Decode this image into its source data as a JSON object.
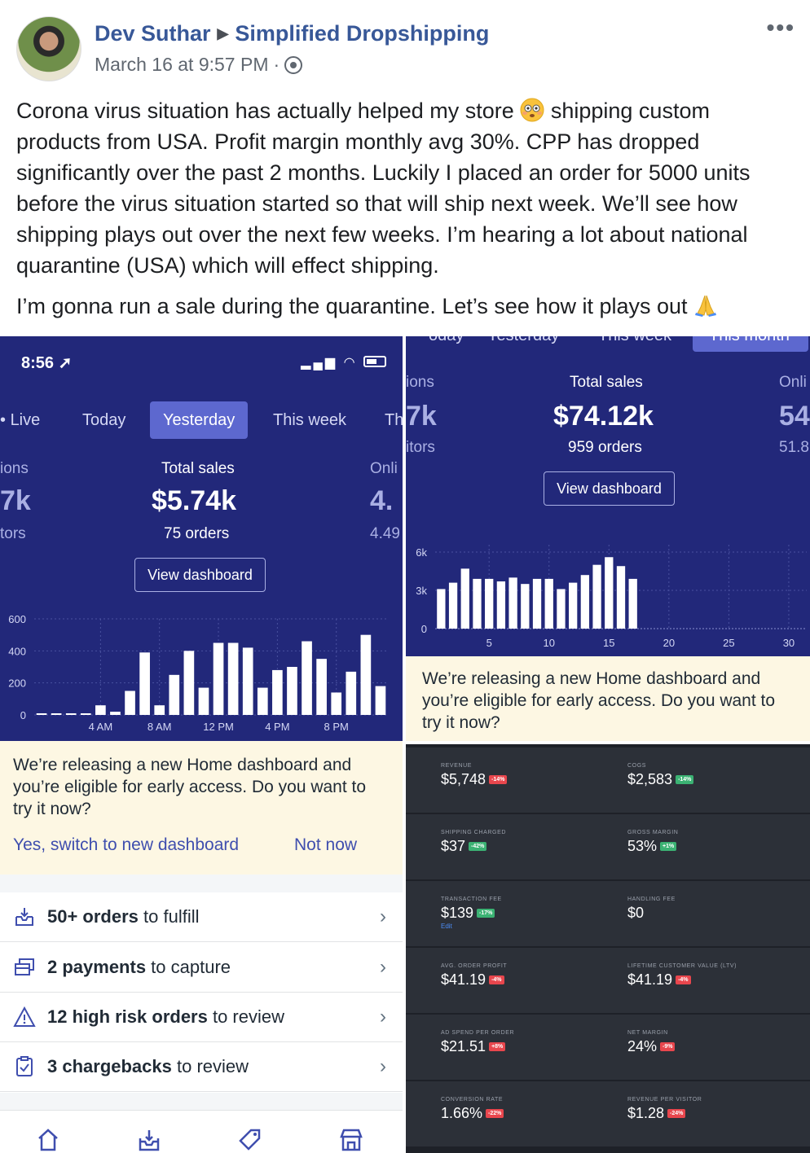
{
  "post": {
    "author": "Dev Suthar",
    "group": "Simplified Dropshipping",
    "timestamp": "March 16 at 9:57 PM",
    "separator": "·",
    "privacy_icon": "group-icon",
    "more_label": "•••",
    "paragraph1_before_emoji": "Corona virus situation has actually helped my store",
    "paragraph1_after_emoji": "shipping custom products from USA. Profit margin monthly avg 30%. CPP has dropped significantly over the past 2 months. Luckily I placed an order for 5000 units before the virus situation started so that will ship next week. We’ll see how shipping plays out over the next few weeks. I’m hearing a lot about national quarantine (USA) which will effect shipping.",
    "paragraph2": "I’m gonna run a sale during the quarantine. Let’s see how it plays out",
    "emoji1": "flushed-face-emoji",
    "emoji2": "folded-hands-emoji"
  },
  "left_screen": {
    "status_time": "8:56",
    "tabs": [
      "Live",
      "Today",
      "Yesterday",
      "This week",
      "Th"
    ],
    "active_tab": "Yesterday",
    "partial_left_label_top": "ions",
    "partial_left_value": "7k",
    "partial_left_label_bottom": "tors",
    "total_sales_label": "Total sales",
    "total_sales_value": "$5.74k",
    "orders": "75 orders",
    "partial_right_label_top": "Onli",
    "partial_right_value": "4.",
    "partial_right_label_bottom": "4.49",
    "view_dashboard": "View dashboard",
    "banner_text": "We’re releasing a new Home dashboard and you’re eligible for early access. Do you want to try it now?",
    "banner_yes": "Yes, switch to new dashboard",
    "banner_no": "Not now",
    "tasks": [
      {
        "bold": "50+ orders",
        "rest": " to fulfill",
        "icon": "fulfill-icon"
      },
      {
        "bold": "2 payments",
        "rest": " to capture",
        "icon": "payment-icon"
      },
      {
        "bold": "12 high risk orders",
        "rest": " to review",
        "icon": "warning-icon"
      },
      {
        "bold": "3 chargebacks",
        "rest": " to review",
        "icon": "chargeback-icon"
      }
    ],
    "bottom_nav": [
      "home-icon",
      "orders-icon",
      "products-icon",
      "store-icon"
    ]
  },
  "right_top_screen": {
    "tabs_partial": [
      "oday",
      "Yesterday",
      "This week",
      "This month"
    ],
    "partial_left_label_top": "ions",
    "partial_left_value": "7k",
    "partial_left_label_bottom": "itors",
    "total_sales_label": "Total sales",
    "total_sales_value": "$74.12k",
    "orders": "959 orders",
    "partial_right_label_top": "Onli",
    "partial_right_value": "54",
    "partial_right_label_bottom": "51.8",
    "view_dashboard": "View dashboard",
    "banner_text": "We’re releasing a new Home dashboard and you’re eligible for early access. Do you want to try it now?"
  },
  "metrics": [
    {
      "left": {
        "label": "REVENUE",
        "value": "$5,748",
        "badge": "-14%",
        "badge_color": "red"
      },
      "right": {
        "label": "COGS",
        "value": "$2,583",
        "badge": "-14%",
        "badge_color": "green"
      }
    },
    {
      "left": {
        "label": "SHIPPING CHARGED",
        "value": "$37",
        "badge": "-42%",
        "badge_color": "green"
      },
      "right": {
        "label": "GROSS MARGIN",
        "value": "53%",
        "badge": "+1%",
        "badge_color": "green"
      }
    },
    {
      "left": {
        "label": "TRANSACTION FEE",
        "value": "$139",
        "badge": "-17%",
        "badge_color": "green",
        "sub": "Edit"
      },
      "right": {
        "label": "HANDLING FEE",
        "value": "$0",
        "badge": "",
        "badge_color": ""
      }
    },
    {
      "left": {
        "label": "AVG. ORDER PROFIT",
        "value": "$41.19",
        "badge": "-4%",
        "badge_color": "red"
      },
      "right": {
        "label": "LIFETIME CUSTOMER VALUE (LTV)",
        "value": "$41.19",
        "badge": "-4%",
        "badge_color": "red"
      }
    },
    {
      "left": {
        "label": "AD SPEND PER ORDER",
        "value": "$21.51",
        "badge": "+8%",
        "badge_color": "red"
      },
      "right": {
        "label": "NET MARGIN",
        "value": "24%",
        "badge": "-9%",
        "badge_color": "red"
      }
    },
    {
      "left": {
        "label": "CONVERSION RATE",
        "value": "1.66%",
        "badge": "-22%",
        "badge_color": "red"
      },
      "right": {
        "label": "REVENUE PER VISITOR",
        "value": "$1.28",
        "badge": "-24%",
        "badge_color": "red"
      }
    }
  ],
  "chart_data": [
    {
      "type": "bar",
      "title": "",
      "categories": [
        "12 AM",
        "1 AM",
        "2 AM",
        "3 AM",
        "4 AM",
        "5 AM",
        "6 AM",
        "7 AM",
        "8 AM",
        "9 AM",
        "10 AM",
        "11 AM",
        "12 PM",
        "1 PM",
        "2 PM",
        "3 PM",
        "4 PM",
        "5 PM",
        "6 PM",
        "7 PM",
        "8 PM",
        "9 PM",
        "10 PM",
        "11 PM"
      ],
      "values": [
        0,
        0,
        0,
        0,
        60,
        20,
        150,
        390,
        60,
        250,
        400,
        170,
        450,
        450,
        420,
        170,
        280,
        300,
        460,
        350,
        140,
        270,
        500,
        180
      ],
      "x_tick_labels": [
        "4 AM",
        "8 AM",
        "12 PM",
        "4 PM",
        "8 PM"
      ],
      "y_ticks": [
        "600",
        "400",
        "200",
        "0"
      ],
      "ylim": [
        0,
        600
      ]
    },
    {
      "type": "bar",
      "title": "",
      "categories": [
        "1",
        "2",
        "3",
        "4",
        "5",
        "6",
        "7",
        "8",
        "9",
        "10",
        "11",
        "12",
        "13",
        "14",
        "15",
        "16",
        "17",
        "18",
        "19",
        "20",
        "21",
        "22",
        "23",
        "24",
        "25",
        "26",
        "27",
        "28",
        "29",
        "30",
        "31"
      ],
      "values": [
        3100,
        3600,
        4700,
        3900,
        3900,
        3700,
        4000,
        3500,
        3900,
        3900,
        3100,
        3600,
        4200,
        5000,
        5600,
        4900,
        3900,
        0,
        0,
        0,
        0,
        0,
        0,
        0,
        0,
        0,
        0,
        0,
        0,
        0,
        0
      ],
      "x_tick_labels": [
        "5",
        "10",
        "15",
        "20",
        "25",
        "30"
      ],
      "y_ticks": [
        "6k",
        "3k",
        "0"
      ],
      "ylim": [
        0,
        6000
      ]
    }
  ]
}
